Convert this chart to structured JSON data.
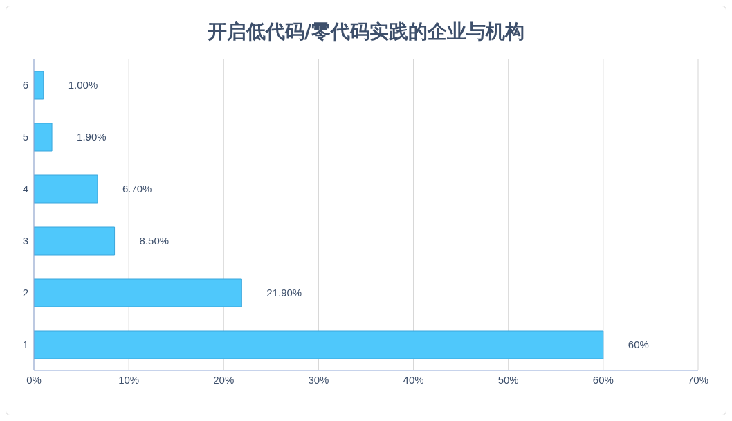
{
  "chart_data": {
    "type": "bar",
    "orientation": "horizontal",
    "title": "开启低代码/零代码实践的企业与机构",
    "categories": [
      "6",
      "5",
      "4",
      "3",
      "2",
      "1"
    ],
    "values": [
      1.0,
      1.9,
      6.7,
      8.5,
      21.9,
      60
    ],
    "value_labels": [
      "1.00%",
      "1.90%",
      "6.70%",
      "8.50%",
      "21.90%",
      "60%"
    ],
    "color": "#4fc8fb",
    "xlim": [
      0,
      70
    ],
    "xticks": [
      {
        "value": 0,
        "label": "0%"
      },
      {
        "value": 10,
        "label": "10%"
      },
      {
        "value": 20,
        "label": "20%"
      },
      {
        "value": 30,
        "label": "30%"
      },
      {
        "value": 40,
        "label": "40%"
      },
      {
        "value": 50,
        "label": "50%"
      },
      {
        "value": 60,
        "label": "60%"
      },
      {
        "value": 70,
        "label": "70%"
      }
    ],
    "grid": "x",
    "legend": false
  }
}
